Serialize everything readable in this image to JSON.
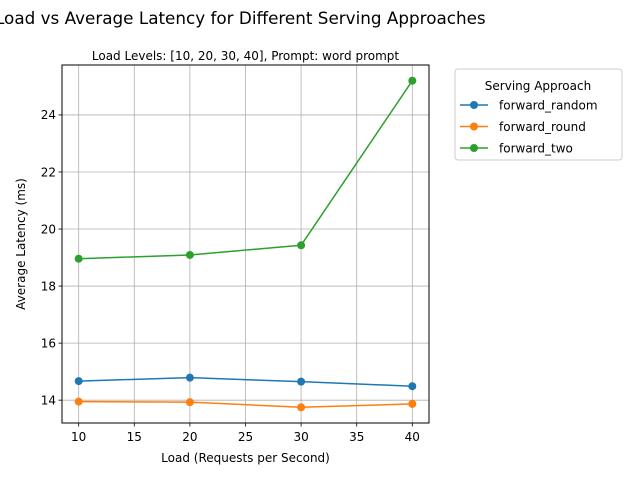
{
  "chart_data": {
    "type": "line",
    "title": "Load vs Average Latency for Different Serving Approaches",
    "subtitle": "Load Levels: [10, 20, 30, 40], Prompt: word prompt",
    "xlabel": "Load (Requests per Second)",
    "ylabel": "Average Latency (ms)",
    "x": [
      10,
      20,
      30,
      40
    ],
    "xlim": [
      8.5,
      41.5
    ],
    "ylim": [
      13.2,
      25.75
    ],
    "xticks": [
      10,
      15,
      20,
      25,
      30,
      35,
      40
    ],
    "yticks": [
      14,
      16,
      18,
      20,
      22,
      24
    ],
    "grid": true,
    "legend": {
      "title": "Serving Approach",
      "placement": "outside-top-right"
    },
    "series": [
      {
        "name": "forward_random",
        "color": "#1f77b4",
        "values": [
          14.67,
          14.79,
          14.65,
          14.49
        ]
      },
      {
        "name": "forward_round",
        "color": "#ff7f0e",
        "values": [
          13.95,
          13.93,
          13.75,
          13.87
        ]
      },
      {
        "name": "forward_two",
        "color": "#2ca02c",
        "values": [
          18.96,
          19.09,
          19.43,
          25.2
        ]
      }
    ]
  }
}
